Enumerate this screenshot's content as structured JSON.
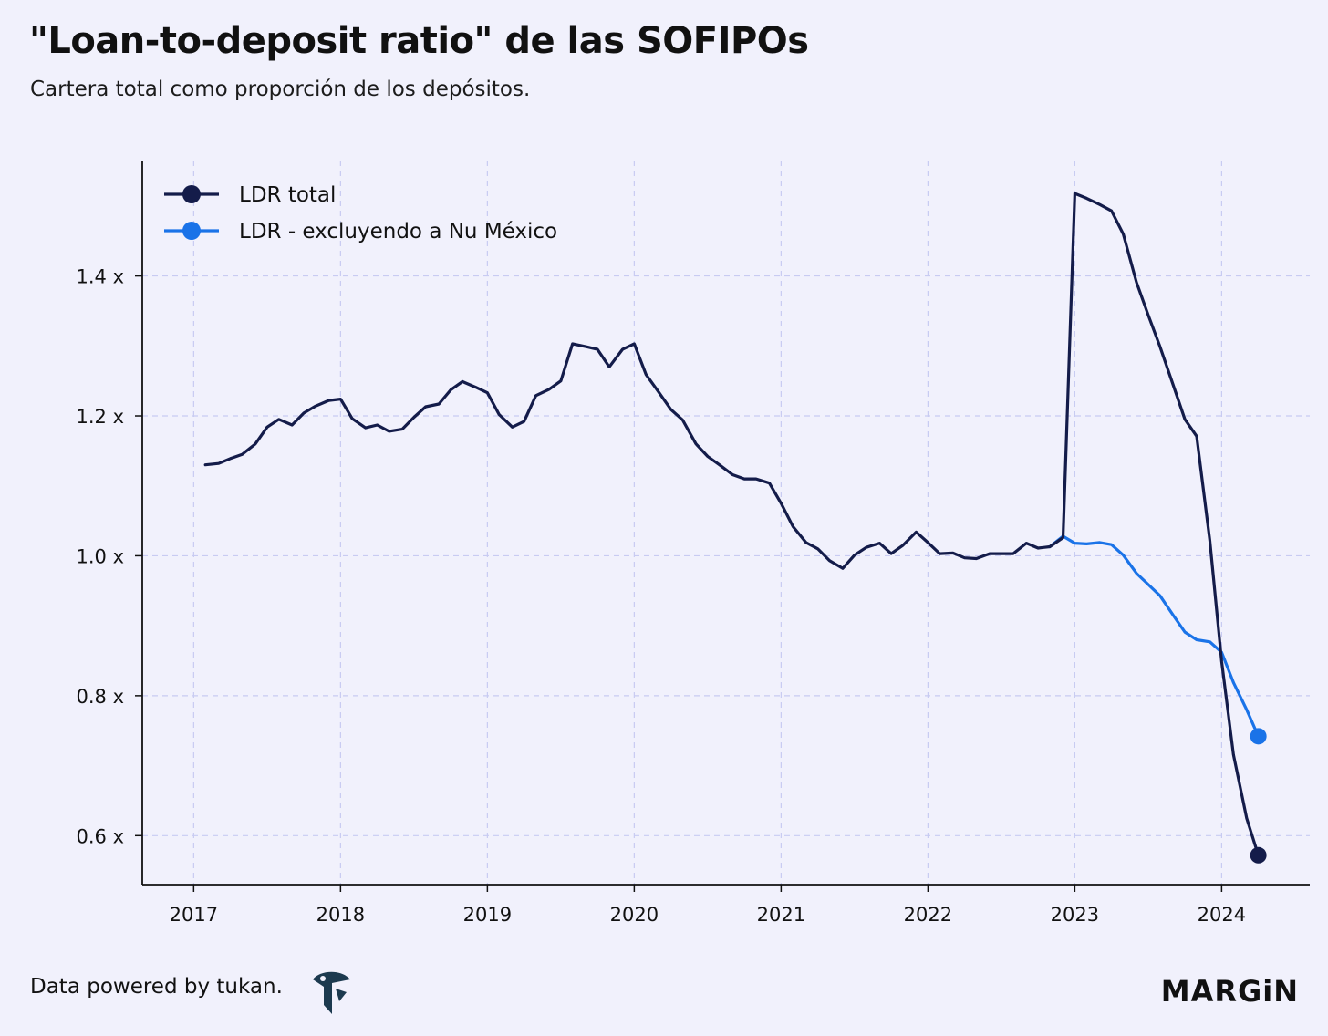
{
  "header": {
    "title": "\"Loan-to-deposit ratio\" de las SOFIPOs",
    "subtitle": "Cartera total como proporción de los depósitos."
  },
  "footer": {
    "credit": "Data powered by tukan.",
    "logo_icon": "tukan-bird-icon",
    "brand": "MARGiN"
  },
  "colors": {
    "background": "#f1f1fc",
    "ldr_total": "#141c4a",
    "ldr_excl": "#1a73e8",
    "grid": "#c8cbf2"
  },
  "chart_data": {
    "type": "line",
    "title": "\"Loan-to-deposit ratio\" de las SOFIPOs",
    "subtitle": "Cartera total como proporción de los depósitos.",
    "x_ticks": [
      "2017",
      "2018",
      "2019",
      "2020",
      "2021",
      "2022",
      "2023",
      "2024"
    ],
    "x_range": [
      2016.65,
      2024.6
    ],
    "y_ticks": [
      "0.6 x",
      "0.8 x",
      "1.0 x",
      "1.2 x",
      "1.4 x"
    ],
    "y_tick_values": [
      0.6,
      0.8,
      1.0,
      1.2,
      1.4
    ],
    "y_range": [
      0.53,
      1.565
    ],
    "grid": true,
    "legend_position": "top-left",
    "series": [
      {
        "name": "LDR total",
        "color": "#141c4a",
        "end_marker": true,
        "points": [
          [
            2017.08,
            1.13
          ],
          [
            2017.17,
            1.132
          ],
          [
            2017.25,
            1.139
          ],
          [
            2017.33,
            1.145
          ],
          [
            2017.42,
            1.16
          ],
          [
            2017.5,
            1.184
          ],
          [
            2017.58,
            1.195
          ],
          [
            2017.67,
            1.187
          ],
          [
            2017.75,
            1.204
          ],
          [
            2017.83,
            1.214
          ],
          [
            2017.92,
            1.222
          ],
          [
            2018.0,
            1.224
          ],
          [
            2018.08,
            1.196
          ],
          [
            2018.17,
            1.183
          ],
          [
            2018.25,
            1.187
          ],
          [
            2018.33,
            1.178
          ],
          [
            2018.42,
            1.181
          ],
          [
            2018.5,
            1.198
          ],
          [
            2018.58,
            1.213
          ],
          [
            2018.67,
            1.217
          ],
          [
            2018.75,
            1.237
          ],
          [
            2018.83,
            1.249
          ],
          [
            2018.92,
            1.241
          ],
          [
            2019.0,
            1.233
          ],
          [
            2019.08,
            1.202
          ],
          [
            2019.17,
            1.184
          ],
          [
            2019.25,
            1.192
          ],
          [
            2019.33,
            1.229
          ],
          [
            2019.42,
            1.238
          ],
          [
            2019.5,
            1.25
          ],
          [
            2019.58,
            1.303
          ],
          [
            2019.67,
            1.299
          ],
          [
            2019.75,
            1.295
          ],
          [
            2019.83,
            1.27
          ],
          [
            2019.92,
            1.295
          ],
          [
            2020.0,
            1.303
          ],
          [
            2020.08,
            1.259
          ],
          [
            2020.17,
            1.233
          ],
          [
            2020.25,
            1.209
          ],
          [
            2020.33,
            1.194
          ],
          [
            2020.42,
            1.16
          ],
          [
            2020.5,
            1.142
          ],
          [
            2020.58,
            1.13
          ],
          [
            2020.67,
            1.116
          ],
          [
            2020.75,
            1.11
          ],
          [
            2020.83,
            1.11
          ],
          [
            2020.92,
            1.104
          ],
          [
            2021.0,
            1.075
          ],
          [
            2021.08,
            1.042
          ],
          [
            2021.17,
            1.019
          ],
          [
            2021.25,
            1.01
          ],
          [
            2021.33,
            0.993
          ],
          [
            2021.42,
            0.982
          ],
          [
            2021.5,
            1.001
          ],
          [
            2021.58,
            1.012
          ],
          [
            2021.67,
            1.018
          ],
          [
            2021.75,
            1.003
          ],
          [
            2021.83,
            1.015
          ],
          [
            2021.92,
            1.034
          ],
          [
            2022.0,
            1.019
          ],
          [
            2022.08,
            1.003
          ],
          [
            2022.17,
            1.004
          ],
          [
            2022.25,
            0.997
          ],
          [
            2022.33,
            0.996
          ],
          [
            2022.42,
            1.003
          ],
          [
            2022.5,
            1.003
          ],
          [
            2022.58,
            1.003
          ],
          [
            2022.67,
            1.018
          ],
          [
            2022.75,
            1.011
          ],
          [
            2022.83,
            1.013
          ],
          [
            2022.92,
            1.026
          ],
          [
            2023.0,
            1.518
          ],
          [
            2023.08,
            1.511
          ],
          [
            2023.17,
            1.502
          ],
          [
            2023.25,
            1.493
          ],
          [
            2023.33,
            1.46
          ],
          [
            2023.42,
            1.391
          ],
          [
            2023.5,
            1.344
          ],
          [
            2023.58,
            1.299
          ],
          [
            2023.67,
            1.244
          ],
          [
            2023.75,
            1.195
          ],
          [
            2023.83,
            1.171
          ],
          [
            2023.92,
            1.021
          ],
          [
            2024.0,
            0.849
          ],
          [
            2024.08,
            0.716
          ],
          [
            2024.17,
            0.625
          ],
          [
            2024.25,
            0.572
          ]
        ]
      },
      {
        "name": "LDR - excluyendo a Nu México",
        "color": "#1a73e8",
        "end_marker": true,
        "points": [
          [
            2022.83,
            1.013
          ],
          [
            2022.92,
            1.028
          ],
          [
            2023.0,
            1.018
          ],
          [
            2023.08,
            1.017
          ],
          [
            2023.17,
            1.019
          ],
          [
            2023.25,
            1.016
          ],
          [
            2023.33,
            1.001
          ],
          [
            2023.42,
            0.975
          ],
          [
            2023.5,
            0.959
          ],
          [
            2023.58,
            0.943
          ],
          [
            2023.67,
            0.915
          ],
          [
            2023.75,
            0.891
          ],
          [
            2023.83,
            0.88
          ],
          [
            2023.92,
            0.877
          ],
          [
            2024.0,
            0.862
          ],
          [
            2024.08,
            0.819
          ],
          [
            2024.17,
            0.78
          ],
          [
            2024.25,
            0.742
          ]
        ]
      }
    ]
  }
}
